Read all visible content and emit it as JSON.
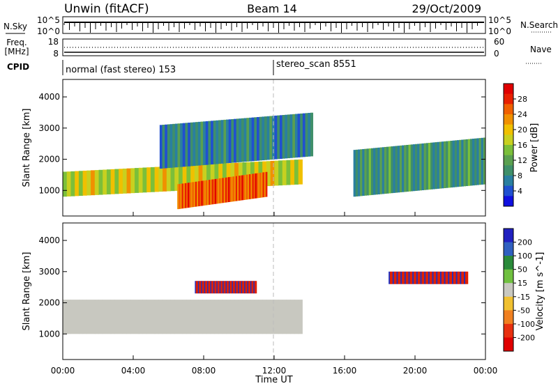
{
  "header": {
    "station": "Unwin (fitACF)",
    "beam": "Beam 14",
    "date": "29/Oct/2009"
  },
  "status_panels": {
    "nsky_label": "N.Sky",
    "nsky_ticks": [
      "10^5",
      "10^0"
    ],
    "nsearch_label": "N.Search",
    "nsearch_ticks": [
      "10^5",
      "10^0"
    ],
    "freq_label_line1": "Freq.",
    "freq_label_line2": "[MHz]",
    "freq_ticks": [
      "18",
      "8"
    ],
    "nave_label": "Nave",
    "nave_ticks": [
      "60",
      "0"
    ],
    "cpid_label": "CPID",
    "cpid_modes": [
      {
        "name": "normal (fast stereo) 153",
        "start": "00:00"
      },
      {
        "name": "stereo_scan 8551",
        "start": "12:00"
      }
    ]
  },
  "chart_data": [
    {
      "type": "heatmap",
      "name": "power-panel",
      "ylabel": "Slant Range [km]",
      "ylim": [
        180,
        4560
      ],
      "yticks": [
        "1000",
        "2000",
        "3000",
        "4000"
      ],
      "xlim_hours": [
        0,
        24
      ],
      "colorbar": {
        "label": "Power [dB]",
        "ticks": [
          "4",
          "8",
          "12",
          "16",
          "20",
          "24",
          "28"
        ],
        "range": [
          0,
          32
        ],
        "colors": [
          "#1010e0",
          "#2050d0",
          "#2a7fa0",
          "#3f8f6a",
          "#5aa050",
          "#7bbf3a",
          "#c8d020",
          "#f0c000",
          "#f09000",
          "#f06000",
          "#e82000",
          "#e00000"
        ]
      },
      "echo_regions": [
        {
          "hours": [
            0.0,
            13.6
          ],
          "range_km": [
            1000,
            1800
          ],
          "level_db": 16,
          "note": "main band"
        },
        {
          "hours": [
            6.5,
            11.6
          ],
          "range_km": [
            600,
            1400
          ],
          "level_db": 24,
          "note": "intense band"
        },
        {
          "hours": [
            5.5,
            14.2
          ],
          "range_km": [
            1900,
            3300
          ],
          "level_db": 6,
          "note": "upper weak band"
        },
        {
          "hours": [
            16.5,
            24.0
          ],
          "range_km": [
            1000,
            2500
          ],
          "level_db": 8,
          "note": "evening band"
        }
      ]
    },
    {
      "type": "heatmap",
      "name": "velocity-panel",
      "ylabel": "Slant Range [km]",
      "ylim": [
        180,
        4560
      ],
      "yticks": [
        "1000",
        "2000",
        "3000",
        "4000"
      ],
      "xlim_hours": [
        0,
        24
      ],
      "colorbar": {
        "label": "Velocity [m s^-1]",
        "ticks": [
          "200",
          "100",
          "50",
          "15",
          "-15",
          "-50",
          "-100",
          "-200"
        ],
        "colors": [
          "#2020c0",
          "#3060c0",
          "#2a8a3a",
          "#70c040",
          "#c8c8c0",
          "#f0c030",
          "#f08020",
          "#e83010",
          "#e00000"
        ]
      },
      "echo_regions": [
        {
          "hours": [
            0.0,
            13.6
          ],
          "range_km": [
            1000,
            2100
          ],
          "velocity": 0,
          "note": "ground scatter"
        },
        {
          "hours": [
            7.5,
            11.0
          ],
          "range_km": [
            2300,
            2700
          ],
          "velocity": -150,
          "note": "mixed red/blue patch"
        },
        {
          "hours": [
            18.5,
            23.0
          ],
          "range_km": [
            2600,
            3000
          ],
          "velocity": -150,
          "note": "red patch"
        }
      ]
    }
  ],
  "x_axis": {
    "label": "Time UT",
    "ticks": [
      "00:00",
      "04:00",
      "08:00",
      "12:00",
      "16:00",
      "20:00",
      "00:00"
    ]
  }
}
